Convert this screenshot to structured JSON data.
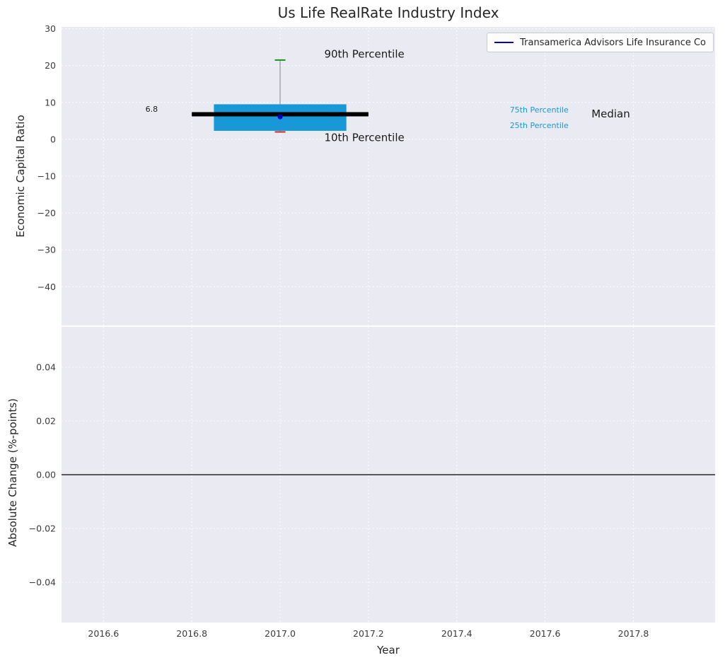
{
  "chart_data": {
    "type": "boxplot",
    "title": "Us Life RealRate Industry Index",
    "xlabel": "Year",
    "legend": {
      "label": "Transamerica Advisors Life Insurance Co",
      "line_color": "#0000cc"
    },
    "colors": {
      "axes_background": "#eaeaf2",
      "grid": "#ffffff",
      "tick_label": "#3a3a3a",
      "text": "#262626"
    },
    "x_axis": {
      "lim": [
        2016.505,
        2017.985
      ],
      "ticks": [
        2016.6,
        2016.8,
        2017.0,
        2017.2,
        2017.4,
        2017.6,
        2017.8
      ],
      "tick_labels": [
        "2016.6",
        "2016.8",
        "2017.0",
        "2017.2",
        "2017.4",
        "2017.6",
        "2017.8"
      ]
    },
    "top_plot": {
      "ylabel": "Economic Capital Ratio",
      "ylim": [
        -50.5,
        30.5
      ],
      "yticks": [
        30,
        20,
        10,
        0,
        -10,
        -20,
        -30,
        -40
      ],
      "ytick_labels": [
        "30",
        "20",
        "10",
        "0",
        "−10",
        "−20",
        "−30",
        "−40"
      ],
      "boxplot": {
        "x": 2017.0,
        "box_left": 2016.85,
        "box_right": 2017.15,
        "q1": 2.3,
        "q3": 9.5,
        "median": 6.8,
        "median_left": 2016.8,
        "median_right": 2017.2,
        "whisker_high": 21.5,
        "whisker_low": 2.0,
        "cap_half_width": 0.012,
        "company_value": 6.1,
        "box_color": "#1898d6",
        "median_color": "#000000",
        "whisker_color": "#999999",
        "high_cap_color": "#1e8f1e",
        "low_cap_color": "#d62728",
        "company_marker_color": "#0000cc"
      },
      "annotations": [
        {
          "text": "90th Percentile",
          "x": 2017.1,
          "y": 23.2,
          "color": "#1a1a1a",
          "size": 15
        },
        {
          "text": "10th Percentile",
          "x": 2017.1,
          "y": 0.55,
          "color": "#1a1a1a",
          "size": 15
        },
        {
          "text": "75th Percentile",
          "x": 2017.52,
          "y": 8.0,
          "color": "#1898d6",
          "size": 11
        },
        {
          "text": "25th Percentile",
          "x": 2017.52,
          "y": 3.8,
          "color": "#1898d6",
          "size": 11
        },
        {
          "text": "Median",
          "x": 2017.705,
          "y": 6.9,
          "color": "#1a1a1a",
          "size": 15
        },
        {
          "text": "6.8",
          "x": 2016.695,
          "y": 8.2,
          "color": "#1a1a1a",
          "size": 11
        }
      ]
    },
    "bottom_plot": {
      "ylabel": "Absolute Change (%-points)",
      "ylim": [
        -0.055,
        0.055
      ],
      "yticks": [
        0.04,
        0.02,
        0.0,
        -0.02,
        -0.04
      ],
      "ytick_labels": [
        "0.04",
        "0.02",
        "0.00",
        "−0.02",
        "−0.04"
      ],
      "zero_line": 0.0
    }
  }
}
